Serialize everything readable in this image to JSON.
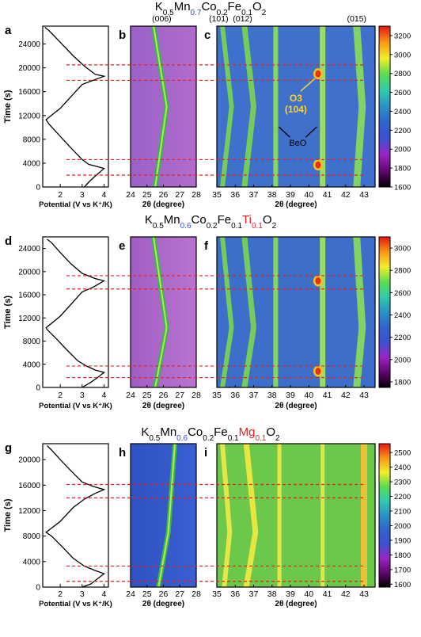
{
  "chart_data": [
    {
      "panel": "top",
      "type": "heatmap",
      "title": {
        "parts": [
          {
            "t": "K",
            "c": "#000000"
          },
          {
            "t": "0.5",
            "c": "#000000",
            "sub": true
          },
          {
            "t": "Mn",
            "c": "#000000"
          },
          {
            "t": "0.7",
            "c": "#3a4fd0",
            "sub": true
          },
          {
            "t": "Co",
            "c": "#000000"
          },
          {
            "t": "0.2",
            "c": "#000000",
            "sub": true
          },
          {
            "t": "Fe",
            "c": "#000000"
          },
          {
            "t": "0.1",
            "c": "#000000",
            "sub": true
          },
          {
            "t": "O",
            "c": "#000000"
          },
          {
            "t": "2",
            "c": "#000000",
            "sub": true
          }
        ]
      },
      "letters": [
        "a",
        "b",
        "c"
      ],
      "ylabel": "Time (s)",
      "ylim": [
        0,
        27000
      ],
      "yticks": [
        0,
        4000,
        8000,
        12000,
        16000,
        20000,
        24000
      ],
      "potential": {
        "xlabel": "Potential (V vs K⁺/K)",
        "xlim": [
          1.2,
          4.2
        ],
        "xticks": [
          2,
          3,
          4
        ],
        "curve": [
          [
            3.1,
            0
          ],
          [
            3.35,
            1000
          ],
          [
            3.65,
            2000
          ],
          [
            4.0,
            3100
          ],
          [
            3.7,
            3400
          ],
          [
            3.3,
            3800
          ],
          [
            3.0,
            4600
          ],
          [
            2.5,
            6500
          ],
          [
            2.0,
            8500
          ],
          [
            1.5,
            10500
          ],
          [
            1.35,
            11300
          ],
          [
            2.0,
            13200
          ],
          [
            2.6,
            15600
          ],
          [
            3.0,
            17200
          ],
          [
            3.5,
            17900
          ],
          [
            4.0,
            18600
          ],
          [
            3.6,
            18900
          ],
          [
            3.1,
            20300
          ],
          [
            2.6,
            22000
          ],
          [
            2.0,
            24300
          ],
          [
            1.5,
            26200
          ],
          [
            1.3,
            26800
          ]
        ]
      },
      "dashed_times": [
        2000,
        4600,
        17900,
        20500
      ],
      "peak_labels": [
        {
          "text": "(006)",
          "two_theta": 25.9
        },
        {
          "text": "(101)",
          "two_theta": 35.1
        },
        {
          "text": "(012)",
          "two_theta": 36.4
        },
        {
          "text": "(015)",
          "two_theta": 42.6
        }
      ],
      "annotations": [
        {
          "text": "O3",
          "color": "#ffd21f"
        },
        {
          "text": "(104)",
          "color": "#ffd21f"
        },
        {
          "text": "BeO",
          "color": "#000000"
        }
      ],
      "left_xrd": {
        "xlabel": "2θ (degree)",
        "xlim": [
          24,
          28
        ],
        "xticks": [
          24,
          25,
          26,
          27,
          28
        ],
        "center": [
          [
            0,
            25.5
          ],
          [
            13500,
            26.2
          ],
          [
            27000,
            25.4
          ]
        ]
      },
      "right_xrd": {
        "xlabel": "2θ (degree)",
        "xlim": [
          35,
          43.6
        ],
        "xticks": [
          35,
          36,
          37,
          38,
          39,
          40,
          41,
          42,
          43
        ],
        "line_centers": [
          [
            [
              0,
              35.3
            ],
            [
              13500,
              35.8
            ],
            [
              27000,
              35.3
            ]
          ],
          [
            [
              0,
              36.5
            ],
            [
              13500,
              37.0
            ],
            [
              27000,
              36.5
            ]
          ],
          [
            [
              0,
              38.2
            ],
            [
              27000,
              38.2
            ]
          ],
          [
            [
              0,
              40.75
            ],
            [
              27000,
              40.75
            ]
          ],
          [
            [
              0,
              42.6
            ],
            [
              13500,
              42.9
            ],
            [
              27000,
              42.6
            ]
          ]
        ],
        "hot_spots": [
          [
            3700,
            40.5
          ],
          [
            19000,
            40.5
          ]
        ]
      },
      "colorbar": {
        "min": 1600,
        "max": 3300,
        "ticks": [
          1600,
          1800,
          2000,
          2200,
          2400,
          2600,
          2800,
          3000,
          3200
        ],
        "background_level": 2300
      }
    },
    {
      "panel": "middle",
      "type": "heatmap",
      "title": {
        "parts": [
          {
            "t": "K",
            "c": "#000000"
          },
          {
            "t": "0.5",
            "c": "#000000",
            "sub": true
          },
          {
            "t": "Mn",
            "c": "#000000"
          },
          {
            "t": "0.6",
            "c": "#3a4fd0",
            "sub": true
          },
          {
            "t": "Co",
            "c": "#000000"
          },
          {
            "t": "0.2",
            "c": "#000000",
            "sub": true
          },
          {
            "t": "Fe",
            "c": "#000000"
          },
          {
            "t": "0.1",
            "c": "#000000",
            "sub": true
          },
          {
            "t": "Ti",
            "c": "#e02020"
          },
          {
            "t": "0.1",
            "c": "#e02020",
            "sub": true
          },
          {
            "t": "O",
            "c": "#000000"
          },
          {
            "t": "2",
            "c": "#000000",
            "sub": true
          }
        ]
      },
      "letters": [
        "d",
        "e",
        "f"
      ],
      "ylabel": "Time (s)",
      "ylim": [
        0,
        26000
      ],
      "yticks": [
        0,
        4000,
        8000,
        12000,
        16000,
        20000,
        24000
      ],
      "potential": {
        "xlabel": "Potential (V vs K⁺/K)",
        "xlim": [
          1.2,
          4.2
        ],
        "xticks": [
          2,
          3,
          4
        ],
        "curve": [
          [
            3.0,
            0
          ],
          [
            3.4,
            900
          ],
          [
            3.7,
            1700
          ],
          [
            4.0,
            2600
          ],
          [
            3.6,
            3000
          ],
          [
            3.2,
            3700
          ],
          [
            2.8,
            4600
          ],
          [
            2.3,
            6500
          ],
          [
            1.8,
            8500
          ],
          [
            1.4,
            10000
          ],
          [
            1.35,
            10300
          ],
          [
            2.0,
            12300
          ],
          [
            2.6,
            14800
          ],
          [
            3.0,
            16500
          ],
          [
            3.5,
            17300
          ],
          [
            4.0,
            18400
          ],
          [
            3.6,
            18800
          ],
          [
            3.0,
            19700
          ],
          [
            2.5,
            21300
          ],
          [
            2.0,
            23300
          ],
          [
            1.6,
            25000
          ],
          [
            1.4,
            25600
          ]
        ]
      },
      "dashed_times": [
        1700,
        3700,
        17000,
        19300
      ],
      "left_xrd": {
        "xlabel": "2θ (degree)",
        "xlim": [
          24,
          28
        ],
        "xticks": [
          24,
          25,
          26,
          27,
          28
        ],
        "center": [
          [
            0,
            25.5
          ],
          [
            10300,
            26.2
          ],
          [
            26000,
            25.4
          ]
        ]
      },
      "right_xrd": {
        "xlabel": "2θ (degree)",
        "xlim": [
          35,
          43.6
        ],
        "xticks": [
          35,
          36,
          37,
          38,
          39,
          40,
          41,
          42,
          43
        ],
        "line_centers": [
          [
            [
              0,
              35.3
            ],
            [
              10300,
              35.8
            ],
            [
              26000,
              35.3
            ]
          ],
          [
            [
              0,
              36.5
            ],
            [
              10300,
              37.0
            ],
            [
              26000,
              36.5
            ]
          ],
          [
            [
              0,
              38.2
            ],
            [
              26000,
              38.2
            ]
          ],
          [
            [
              0,
              40.75
            ],
            [
              26000,
              40.75
            ]
          ],
          [
            [
              0,
              42.6
            ],
            [
              10300,
              42.9
            ],
            [
              26000,
              42.6
            ]
          ]
        ],
        "hot_spots": [
          [
            2800,
            40.5
          ],
          [
            18400,
            40.5
          ]
        ]
      },
      "colorbar": {
        "min": 1750,
        "max": 3100,
        "ticks": [
          1800,
          2000,
          2200,
          2400,
          2600,
          2800,
          3000
        ],
        "background_level": 2350
      }
    },
    {
      "panel": "bottom",
      "type": "heatmap",
      "title": {
        "parts": [
          {
            "t": "K",
            "c": "#000000"
          },
          {
            "t": "0.5",
            "c": "#000000",
            "sub": true
          },
          {
            "t": "Mn",
            "c": "#000000"
          },
          {
            "t": "0.6",
            "c": "#3a4fd0",
            "sub": true
          },
          {
            "t": "Co",
            "c": "#000000"
          },
          {
            "t": "0.2",
            "c": "#000000",
            "sub": true
          },
          {
            "t": "Fe",
            "c": "#000000"
          },
          {
            "t": "0.1",
            "c": "#000000",
            "sub": true
          },
          {
            "t": "Mg",
            "c": "#e02020"
          },
          {
            "t": "0.1",
            "c": "#e02020",
            "sub": true
          },
          {
            "t": "O",
            "c": "#000000"
          },
          {
            "t": "2",
            "c": "#000000",
            "sub": true
          }
        ]
      },
      "letters": [
        "g",
        "h",
        "i"
      ],
      "ylabel": "Time (s)",
      "ylim": [
        0,
        22500
      ],
      "yticks": [
        0,
        4000,
        8000,
        12000,
        16000,
        20000
      ],
      "potential": {
        "xlabel": "Potential (V vs K⁺/K)",
        "xlim": [
          1.2,
          4.2
        ],
        "xticks": [
          2,
          3,
          4
        ],
        "curve": [
          [
            3.0,
            0
          ],
          [
            3.4,
            500
          ],
          [
            3.7,
            1300
          ],
          [
            4.0,
            2100
          ],
          [
            3.6,
            2600
          ],
          [
            3.1,
            3300
          ],
          [
            2.6,
            4500
          ],
          [
            2.1,
            6300
          ],
          [
            1.6,
            8000
          ],
          [
            1.35,
            8600
          ],
          [
            2.0,
            10300
          ],
          [
            2.6,
            12500
          ],
          [
            3.1,
            13800
          ],
          [
            3.6,
            14700
          ],
          [
            4.0,
            15300
          ],
          [
            3.5,
            15800
          ],
          [
            3.0,
            16500
          ],
          [
            2.5,
            18200
          ],
          [
            2.0,
            20000
          ],
          [
            1.6,
            21500
          ],
          [
            1.4,
            22200
          ]
        ]
      },
      "dashed_times": [
        900,
        3300,
        14000,
        16100
      ],
      "left_xrd": {
        "xlabel": "2θ (degree)",
        "xlim": [
          24,
          28
        ],
        "xticks": [
          24,
          25,
          26,
          27,
          28
        ],
        "center": [
          [
            0,
            25.7
          ],
          [
            8600,
            26.3
          ],
          [
            22500,
            26.7
          ]
        ]
      },
      "right_xrd": {
        "xlabel": "2θ (degree)",
        "xlim": [
          35,
          43.6
        ],
        "xticks": [
          35,
          36,
          37,
          38,
          39,
          40,
          41,
          42,
          43
        ],
        "line_centers": [
          [
            [
              0,
              35.4
            ],
            [
              8600,
              35.7
            ],
            [
              22500,
              35.3
            ]
          ],
          [
            [
              0,
              36.6
            ],
            [
              8600,
              37.1
            ],
            [
              22500,
              36.6
            ]
          ],
          [
            [
              0,
              38.4
            ],
            [
              22500,
              38.4
            ]
          ],
          [
            [
              0,
              40.75
            ],
            [
              22500,
              40.75
            ]
          ],
          [
            [
              0,
              43.0
            ],
            [
              22500,
              43.0
            ]
          ]
        ],
        "hot_spots": []
      },
      "colorbar": {
        "min": 1580,
        "max": 2560,
        "ticks": [
          1600,
          1700,
          1800,
          1900,
          2000,
          2100,
          2200,
          2300,
          2400,
          2500
        ],
        "background_level": 2150
      }
    }
  ]
}
